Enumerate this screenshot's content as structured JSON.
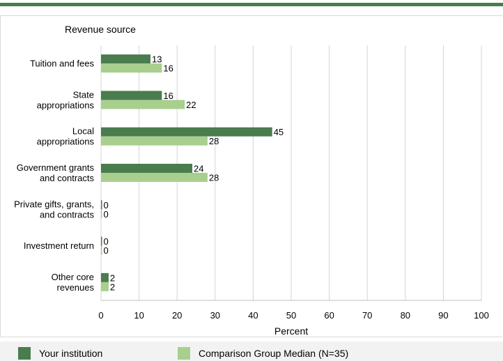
{
  "chart_data": {
    "type": "bar",
    "orientation": "horizontal",
    "title": "Revenue source",
    "xlabel": "Percent",
    "xlim": [
      0,
      100
    ],
    "xticks": [
      0,
      10,
      20,
      30,
      40,
      50,
      60,
      70,
      80,
      90,
      100
    ],
    "grid": true,
    "legend_position": "bottom",
    "categories": [
      [
        "Tuition and fees"
      ],
      [
        "State",
        "appropriations"
      ],
      [
        "Local",
        "appropriations"
      ],
      [
        "Government grants",
        "and contracts"
      ],
      [
        "Private gifts, grants,",
        "and contracts"
      ],
      [
        "Investment return"
      ],
      [
        "Other core",
        "revenues"
      ]
    ],
    "series": [
      {
        "name": "Your institution",
        "color": "#4a7c4e",
        "values": [
          13,
          16,
          45,
          24,
          0,
          0,
          2
        ]
      },
      {
        "name": "Comparison Group Median (N=35)",
        "color": "#a8cf8e",
        "values": [
          16,
          22,
          28,
          28,
          0,
          0,
          2
        ]
      }
    ]
  }
}
